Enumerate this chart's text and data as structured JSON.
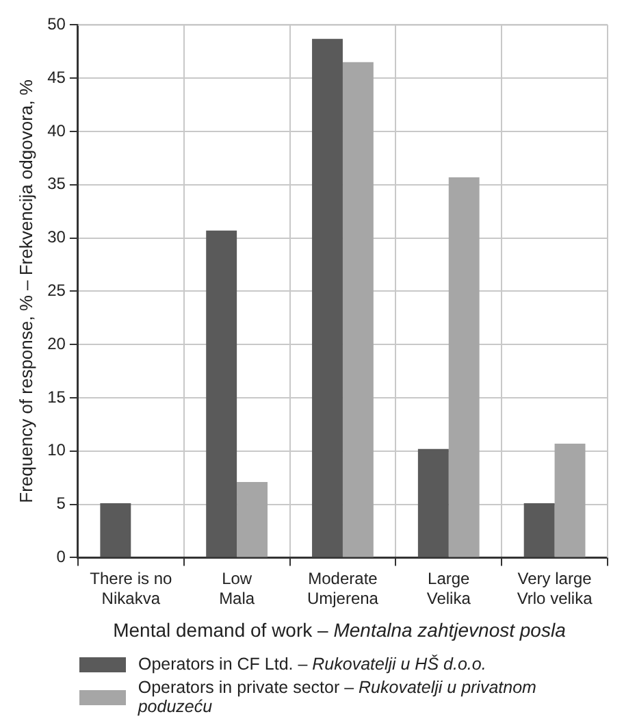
{
  "chart_data": {
    "type": "bar",
    "xlabel": "Mental demand of work – Mentalna zahtjevnost posla",
    "ylabel": "Frequency of response, % – Frekvencija odgovora, %",
    "categories": [
      "There is no\nNikakva",
      "Low\nMala",
      "Moderate\nUmjerena",
      "Large\nVelika",
      "Very large\nVrlo velika"
    ],
    "series": [
      {
        "name": "Operators in CF Ltd. – Rukovatelji u HŠ d.o.o.",
        "color": "#5a5a5a",
        "values": [
          5.1,
          30.7,
          48.7,
          10.2,
          5.1
        ]
      },
      {
        "name": "Operators in private sector – Rukovatelji u privatnom poduzeću",
        "color": "#a6a6a6",
        "values": [
          null,
          7.1,
          46.5,
          35.7,
          10.7
        ]
      }
    ],
    "ylim": [
      0,
      50
    ],
    "yticks": [
      0,
      5,
      10,
      15,
      20,
      25,
      30,
      35,
      40,
      45,
      50
    ],
    "grid": true,
    "legend": "bottom"
  }
}
